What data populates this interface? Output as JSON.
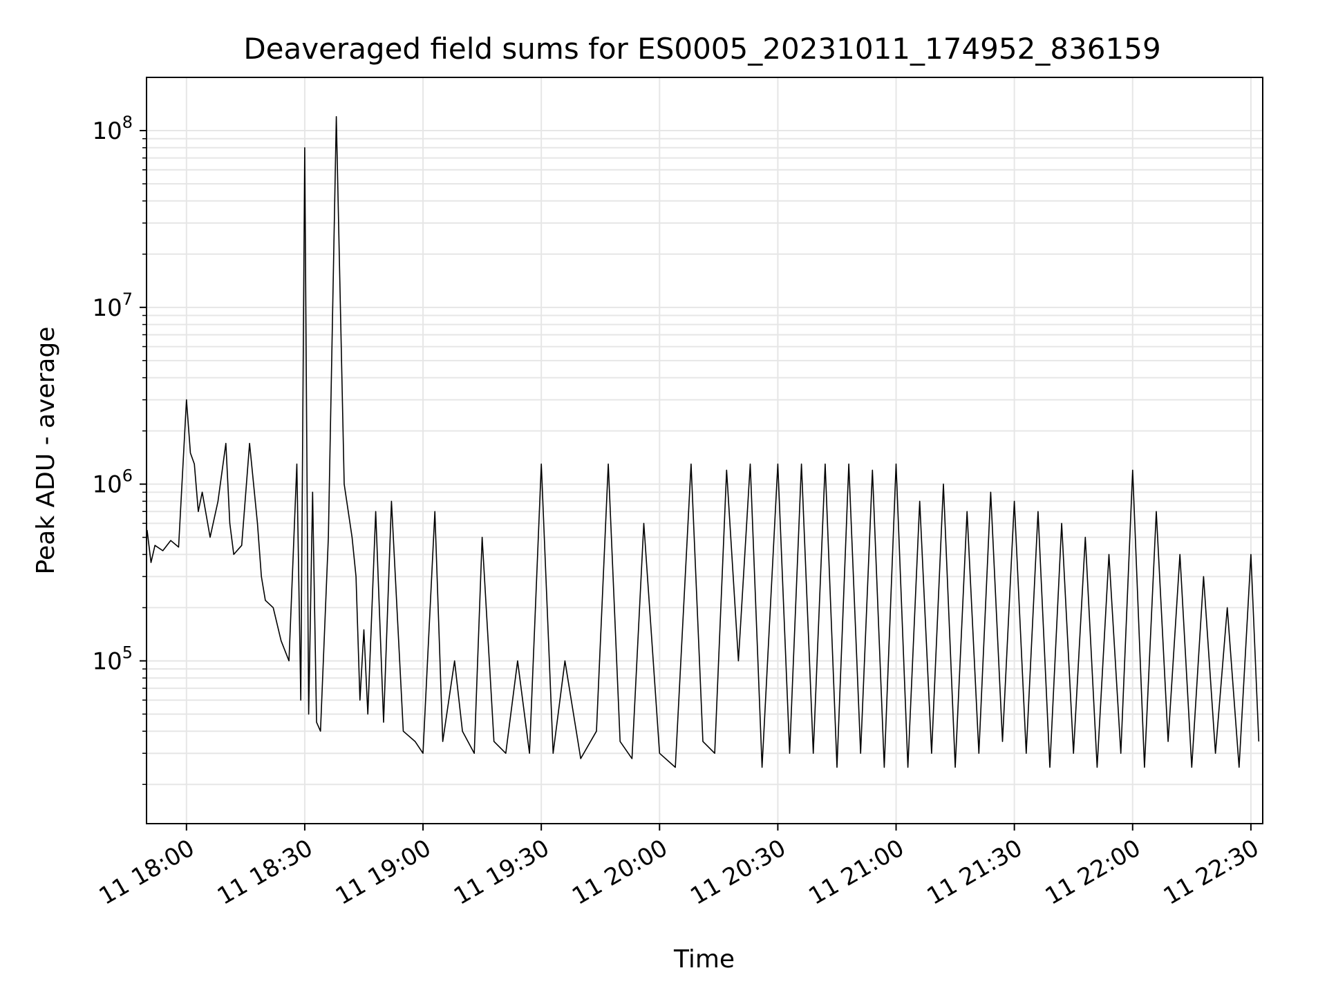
{
  "chart_data": {
    "type": "line",
    "title": "Deaveraged field sums for ES0005_20231011_174952_836159",
    "xlabel": "Time",
    "ylabel": "Peak ADU - average",
    "y_scale": "log",
    "ylim": [
      12000,
      200000000
    ],
    "xlim": [
      "2023-10-11 17:49:52",
      "2023-10-11 22:33"
    ],
    "grid": true,
    "line_color": "#000000",
    "grid_color": "#e6e6e6",
    "x_ticks": [
      {
        "time": "2023-10-11 18:00",
        "label": "11 18:00"
      },
      {
        "time": "2023-10-11 18:30",
        "label": "11 18:30"
      },
      {
        "time": "2023-10-11 19:00",
        "label": "11 19:00"
      },
      {
        "time": "2023-10-11 19:30",
        "label": "11 19:30"
      },
      {
        "time": "2023-10-11 20:00",
        "label": "11 20:00"
      },
      {
        "time": "2023-10-11 20:30",
        "label": "11 20:30"
      },
      {
        "time": "2023-10-11 21:00",
        "label": "11 21:00"
      },
      {
        "time": "2023-10-11 21:30",
        "label": "11 21:30"
      },
      {
        "time": "2023-10-11 22:00",
        "label": "11 22:00"
      },
      {
        "time": "2023-10-11 22:30",
        "label": "11 22:30"
      }
    ],
    "y_ticks": [
      {
        "value": 100000,
        "base": "10",
        "exp": "5"
      },
      {
        "value": 1000000,
        "base": "10",
        "exp": "6"
      },
      {
        "value": 10000000,
        "base": "10",
        "exp": "7"
      },
      {
        "value": 100000000,
        "base": "10",
        "exp": "8"
      }
    ],
    "series": [
      {
        "x": [
          "2023-10-11 17:50",
          "2023-10-11 17:51",
          "2023-10-11 17:52",
          "2023-10-11 17:54",
          "2023-10-11 17:56",
          "2023-10-11 17:58",
          "2023-10-11 18:00",
          "2023-10-11 18:01",
          "2023-10-11 18:02",
          "2023-10-11 18:03",
          "2023-10-11 18:04",
          "2023-10-11 18:06",
          "2023-10-11 18:08",
          "2023-10-11 18:10",
          "2023-10-11 18:11",
          "2023-10-11 18:12",
          "2023-10-11 18:14",
          "2023-10-11 18:16",
          "2023-10-11 18:18",
          "2023-10-11 18:19",
          "2023-10-11 18:20",
          "2023-10-11 18:22",
          "2023-10-11 18:24",
          "2023-10-11 18:26",
          "2023-10-11 18:28",
          "2023-10-11 18:29",
          "2023-10-11 18:30",
          "2023-10-11 18:31",
          "2023-10-11 18:32",
          "2023-10-11 18:33",
          "2023-10-11 18:34",
          "2023-10-11 18:36",
          "2023-10-11 18:38",
          "2023-10-11 18:40",
          "2023-10-11 18:42",
          "2023-10-11 18:43",
          "2023-10-11 18:44",
          "2023-10-11 18:45",
          "2023-10-11 18:46",
          "2023-10-11 18:48",
          "2023-10-11 18:50",
          "2023-10-11 18:52",
          "2023-10-11 18:55",
          "2023-10-11 18:58",
          "2023-10-11 19:00",
          "2023-10-11 19:03",
          "2023-10-11 19:05",
          "2023-10-11 19:08",
          "2023-10-11 19:10",
          "2023-10-11 19:13",
          "2023-10-11 19:15",
          "2023-10-11 19:18",
          "2023-10-11 19:21",
          "2023-10-11 19:24",
          "2023-10-11 19:27",
          "2023-10-11 19:30",
          "2023-10-11 19:33",
          "2023-10-11 19:36",
          "2023-10-11 19:40",
          "2023-10-11 19:44",
          "2023-10-11 19:47",
          "2023-10-11 19:50",
          "2023-10-11 19:53",
          "2023-10-11 19:56",
          "2023-10-11 20:00",
          "2023-10-11 20:04",
          "2023-10-11 20:08",
          "2023-10-11 20:11",
          "2023-10-11 20:14",
          "2023-10-11 20:17",
          "2023-10-11 20:20",
          "2023-10-11 20:23",
          "2023-10-11 20:26",
          "2023-10-11 20:30",
          "2023-10-11 20:33",
          "2023-10-11 20:36",
          "2023-10-11 20:39",
          "2023-10-11 20:42",
          "2023-10-11 20:45",
          "2023-10-11 20:48",
          "2023-10-11 20:51",
          "2023-10-11 20:54",
          "2023-10-11 20:57",
          "2023-10-11 21:00",
          "2023-10-11 21:03",
          "2023-10-11 21:06",
          "2023-10-11 21:09",
          "2023-10-11 21:12",
          "2023-10-11 21:15",
          "2023-10-11 21:18",
          "2023-10-11 21:21",
          "2023-10-11 21:24",
          "2023-10-11 21:27",
          "2023-10-11 21:30",
          "2023-10-11 21:33",
          "2023-10-11 21:36",
          "2023-10-11 21:39",
          "2023-10-11 21:42",
          "2023-10-11 21:45",
          "2023-10-11 21:48",
          "2023-10-11 21:51",
          "2023-10-11 21:54",
          "2023-10-11 21:57",
          "2023-10-11 22:00",
          "2023-10-11 22:03",
          "2023-10-11 22:06",
          "2023-10-11 22:09",
          "2023-10-11 22:12",
          "2023-10-11 22:15",
          "2023-10-11 22:18",
          "2023-10-11 22:21",
          "2023-10-11 22:24",
          "2023-10-11 22:27",
          "2023-10-11 22:30",
          "2023-10-11 22:32"
        ],
        "y": [
          550000,
          360000,
          450000,
          420000,
          480000,
          440000,
          3000000,
          1500000,
          1300000,
          700000,
          900000,
          500000,
          800000,
          1700000,
          600000,
          400000,
          450000,
          1700000,
          600000,
          300000,
          220000,
          200000,
          130000,
          100000,
          1300000,
          60000,
          80000000,
          50000,
          900000,
          45000,
          40000,
          500000,
          120000000,
          1000000,
          500000,
          300000,
          60000,
          150000,
          50000,
          700000,
          45000,
          800000,
          40000,
          35000,
          30000,
          700000,
          35000,
          100000,
          40000,
          30000,
          500000,
          35000,
          30000,
          100000,
          30000,
          1300000,
          30000,
          100000,
          28000,
          40000,
          1300000,
          35000,
          28000,
          600000,
          30000,
          25000,
          1300000,
          35000,
          30000,
          1200000,
          100000,
          1300000,
          25000,
          1300000,
          30000,
          1300000,
          30000,
          1300000,
          25000,
          1300000,
          30000,
          1200000,
          25000,
          1300000,
          25000,
          800000,
          30000,
          1000000,
          25000,
          700000,
          30000,
          900000,
          35000,
          800000,
          30000,
          700000,
          25000,
          600000,
          30000,
          500000,
          25000,
          400000,
          30000,
          1200000,
          25000,
          700000,
          35000,
          400000,
          25000,
          300000,
          30000,
          200000,
          25000,
          400000,
          35000
        ]
      }
    ]
  }
}
